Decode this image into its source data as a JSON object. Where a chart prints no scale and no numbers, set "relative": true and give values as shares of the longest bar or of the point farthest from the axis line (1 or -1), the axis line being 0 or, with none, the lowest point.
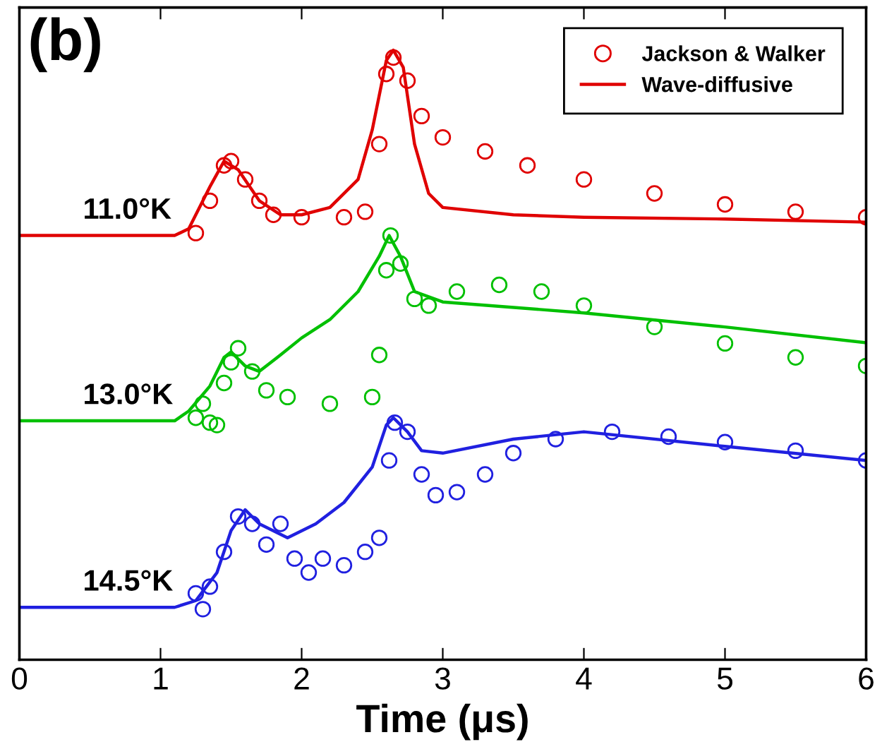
{
  "chart_data": {
    "type": "line",
    "title": "(b)",
    "xlabel": "Time (μs)",
    "relative": true,
    "xlim": [
      0,
      6
    ],
    "xticks": [
      0,
      1,
      2,
      3,
      4,
      5,
      6
    ],
    "tick_labels": "x",
    "grid": false,
    "legend": "top right",
    "annotations": [
      "11.0°K",
      "13.0°K",
      "14.5°K"
    ],
    "series": [
      {
        "name": "Jackson & Walker",
        "type": "scatter",
        "marker": "circle",
        "color": "#e00000",
        "x": [
          1.25,
          1.35,
          1.45,
          1.5,
          1.6,
          1.7,
          1.8,
          2.0,
          2.3,
          2.45,
          2.55,
          2.6,
          2.65,
          2.75,
          2.85,
          3.0,
          3.3,
          3.6,
          4.0,
          4.5,
          5.0,
          5.5,
          6.0
        ],
        "values": [
          0.7,
          0.753,
          0.811,
          0.818,
          0.788,
          0.753,
          0.73,
          0.726,
          0.726,
          0.735,
          0.846,
          0.961,
          0.988,
          0.95,
          0.892,
          0.857,
          0.834,
          0.811,
          0.788,
          0.765,
          0.747,
          0.735,
          0.726
        ]
      },
      {
        "name": "Wave-diffusive",
        "marker": "none",
        "color": "#e00000",
        "x": [
          0,
          1.1,
          1.2,
          1.35,
          1.45,
          1.55,
          1.7,
          1.85,
          2.0,
          2.2,
          2.4,
          2.5,
          2.6,
          2.65,
          2.72,
          2.8,
          2.9,
          3.0,
          3.5,
          4.0,
          5.0,
          6.0
        ],
        "values": [
          0.696,
          0.696,
          0.707,
          0.776,
          0.818,
          0.804,
          0.753,
          0.73,
          0.73,
          0.742,
          0.788,
          0.869,
          0.983,
          1.0,
          0.972,
          0.846,
          0.765,
          0.742,
          0.73,
          0.726,
          0.723,
          0.718
        ]
      },
      {
        "type": "scatter",
        "marker": "circle",
        "color": "#00c000",
        "x": [
          1.25,
          1.3,
          1.35,
          1.4,
          1.45,
          1.5,
          1.55,
          1.65,
          1.75,
          1.9,
          2.2,
          2.5,
          2.55,
          2.6,
          2.63,
          2.7,
          2.8,
          2.9,
          3.1,
          3.4,
          3.7,
          4.0,
          4.5,
          5.0,
          5.5,
          6.0
        ],
        "values": [
          0.397,
          0.42,
          0.389,
          0.385,
          0.454,
          0.488,
          0.511,
          0.473,
          0.442,
          0.431,
          0.42,
          0.431,
          0.5,
          0.639,
          0.696,
          0.65,
          0.592,
          0.581,
          0.604,
          0.615,
          0.604,
          0.581,
          0.546,
          0.519,
          0.496,
          0.482
        ]
      },
      {
        "marker": "none",
        "color": "#00c000",
        "x": [
          0,
          1.1,
          1.2,
          1.35,
          1.45,
          1.5,
          1.6,
          1.7,
          1.85,
          2.0,
          2.2,
          2.4,
          2.55,
          2.62,
          2.7,
          2.8,
          3.0,
          4.0,
          5.0,
          6.0
        ],
        "values": [
          0.392,
          0.392,
          0.408,
          0.449,
          0.496,
          0.505,
          0.482,
          0.473,
          0.5,
          0.528,
          0.558,
          0.604,
          0.662,
          0.696,
          0.662,
          0.604,
          0.587,
          0.569,
          0.546,
          0.52
        ]
      },
      {
        "type": "scatter",
        "marker": "circle",
        "color": "#2020e0",
        "x": [
          1.25,
          1.3,
          1.35,
          1.45,
          1.55,
          1.65,
          1.75,
          1.85,
          1.95,
          2.05,
          2.15,
          2.3,
          2.45,
          2.55,
          2.62,
          2.66,
          2.75,
          2.85,
          2.95,
          3.1,
          3.3,
          3.5,
          3.8,
          4.2,
          4.6,
          5.0,
          5.5,
          6.0
        ],
        "values": [
          0.109,
          0.083,
          0.12,
          0.177,
          0.235,
          0.223,
          0.189,
          0.223,
          0.166,
          0.143,
          0.166,
          0.155,
          0.177,
          0.2,
          0.327,
          0.389,
          0.374,
          0.304,
          0.27,
          0.275,
          0.304,
          0.339,
          0.362,
          0.374,
          0.366,
          0.357,
          0.343,
          0.327
        ]
      },
      {
        "marker": "none",
        "color": "#2020e0",
        "x": [
          0,
          1.1,
          1.25,
          1.4,
          1.5,
          1.6,
          1.7,
          1.9,
          2.1,
          2.3,
          2.5,
          2.6,
          2.65,
          2.75,
          2.85,
          3.0,
          3.5,
          4.0,
          5.0,
          6.0
        ],
        "values": [
          0.086,
          0.086,
          0.097,
          0.143,
          0.212,
          0.246,
          0.223,
          0.2,
          0.223,
          0.258,
          0.316,
          0.385,
          0.397,
          0.374,
          0.343,
          0.339,
          0.362,
          0.374,
          0.35,
          0.327
        ]
      }
    ]
  }
}
